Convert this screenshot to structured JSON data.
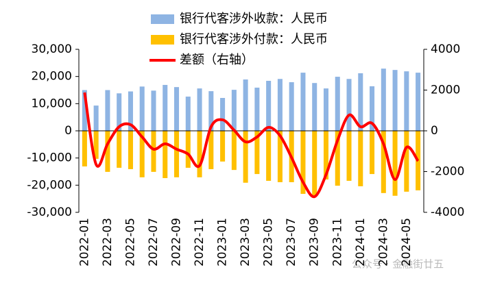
{
  "chart_data": {
    "type": "bar-line",
    "categories": [
      "2022-01",
      null,
      "2022-03",
      null,
      "2022-05",
      null,
      "2022-07",
      null,
      "2022-09",
      null,
      "2022-11",
      null,
      "2023-01",
      null,
      "2023-03",
      null,
      "2023-05",
      null,
      "2023-07",
      null,
      "2023-09",
      null,
      "2023-11",
      null,
      "2024-01",
      null,
      "2024-03",
      null,
      "2024-05",
      null
    ],
    "series": [
      {
        "name": "银行代客涉外收款：人民币",
        "color": "#8eb4e3",
        "type": "bar",
        "values": [
          15000,
          9300,
          15000,
          13800,
          14500,
          16300,
          14800,
          16900,
          16100,
          12600,
          15600,
          14600,
          12100,
          15100,
          18900,
          15900,
          18400,
          19100,
          17900,
          21400,
          17600,
          15600,
          19900,
          19100,
          21200,
          16400,
          22900,
          22400,
          21900,
          21400
        ]
      },
      {
        "name": "银行代客涉外付款：人民币",
        "color": "#ffc000",
        "type": "bar",
        "values": [
          -13100,
          -10300,
          -15100,
          -13600,
          -14100,
          -17100,
          -15100,
          -17400,
          -17100,
          -13600,
          -17100,
          -14100,
          -11300,
          -14400,
          -19100,
          -15900,
          -18400,
          -18900,
          -18900,
          -23200,
          -23700,
          -17900,
          -20200,
          -18400,
          -20400,
          -15900,
          -22900,
          -23900,
          -22400,
          -21900
        ]
      },
      {
        "name": "差额（右轴）",
        "color": "#ff0000",
        "type": "line",
        "axis": "y2",
        "values": [
          1880,
          -1650,
          -640,
          200,
          300,
          -300,
          -900,
          -640,
          -900,
          -1140,
          -1710,
          200,
          540,
          30,
          -540,
          -300,
          170,
          -240,
          -1310,
          -2520,
          -3230,
          -2150,
          -470,
          770,
          200,
          370,
          -640,
          -2390,
          -810,
          -1480
        ]
      }
    ],
    "ylim": [
      -30000,
      30000
    ],
    "yticks": [
      {
        "value": -30000,
        "label": "-30,000"
      },
      {
        "value": -20000,
        "label": "-20,000"
      },
      {
        "value": -10000,
        "label": "-10,000"
      },
      0,
      {
        "value": 10000,
        "label": "10,000"
      },
      {
        "value": 20000,
        "label": "20,000"
      },
      {
        "value": 30000,
        "label": "30,000"
      }
    ],
    "y2lim": [
      -4000,
      4000
    ],
    "y2ticks": [
      -4000,
      -2000,
      0,
      2000,
      4000
    ],
    "watermark": "公众号 · 金融街廿五"
  }
}
